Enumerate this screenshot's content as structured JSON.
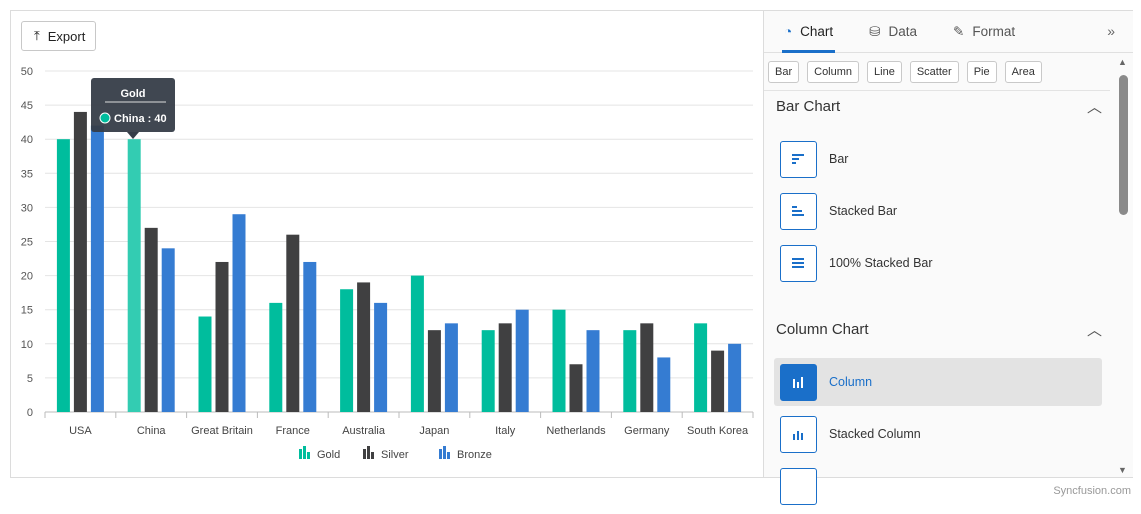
{
  "toolbar": {
    "export_label": "Export"
  },
  "tooltip": {
    "title": "Gold",
    "text": "China : 40"
  },
  "panel": {
    "tabs": [
      {
        "label": "Chart"
      },
      {
        "label": "Data"
      },
      {
        "label": "Format"
      }
    ],
    "chips": [
      "Bar",
      "Column",
      "Line",
      "Scatter",
      "Pie",
      "Area"
    ],
    "sections": [
      {
        "title": "Bar Chart",
        "items": [
          "Bar",
          "Stacked Bar",
          "100% Stacked Bar"
        ]
      },
      {
        "title": "Column Chart",
        "items": [
          "Column",
          "Stacked Column"
        ],
        "selected": "Column"
      }
    ]
  },
  "brand": "Syncfusion.com",
  "colors": {
    "Gold": "#00bd9d",
    "Silver": "#404041",
    "Bronze": "#357cd2",
    "accent": "#1a6fc9"
  },
  "chart_data": {
    "type": "bar",
    "categories": [
      "USA",
      "China",
      "Great Britain",
      "France",
      "Australia",
      "Japan",
      "Italy",
      "Netherlands",
      "Germany",
      "South Korea"
    ],
    "series": [
      {
        "name": "Gold",
        "values": [
          40,
          40,
          14,
          16,
          18,
          20,
          12,
          15,
          12,
          13
        ]
      },
      {
        "name": "Silver",
        "values": [
          44,
          27,
          22,
          26,
          19,
          12,
          13,
          7,
          13,
          9
        ]
      },
      {
        "name": "Bronze",
        "values": [
          42,
          24,
          29,
          22,
          16,
          13,
          15,
          12,
          8,
          10
        ]
      }
    ],
    "ylim": [
      0,
      50
    ],
    "yticks": [
      0,
      5,
      10,
      15,
      20,
      25,
      30,
      35,
      40,
      45,
      50
    ],
    "grid": true,
    "legend": "bottom"
  }
}
